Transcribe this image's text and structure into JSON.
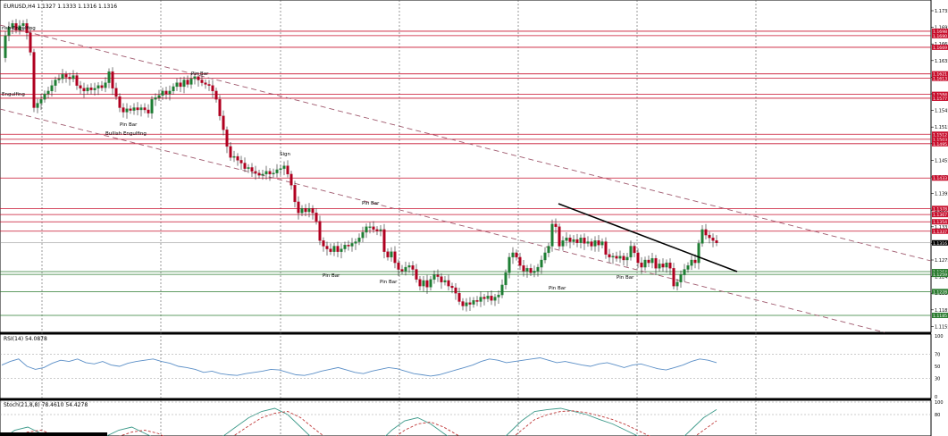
{
  "main_panel": {
    "title": "EURUSD,H4  1.1327 1.1333 1.1316 1.1316",
    "price_axis": [
      "1.1735",
      "1.1695",
      "1.1665",
      "1.1635",
      "1.1605",
      "1.1575",
      "1.1545",
      "1.1515",
      "1.1485",
      "1.1455",
      "1.1425",
      "1.1395",
      "1.1365",
      "1.1335",
      "1.1305",
      "1.1275",
      "1.1245",
      "1.1215",
      "1.1185",
      "1.1155"
    ],
    "level_tags": [
      {
        "label": "1.1698",
        "color": "#c8102e"
      },
      {
        "label": "1.1690",
        "color": "#c8102e"
      },
      {
        "label": "1.1669",
        "color": "#c8102e"
      },
      {
        "label": "1.1621",
        "color": "#c8102e"
      },
      {
        "label": "1.1613",
        "color": "#c8102e"
      },
      {
        "label": "1.1584",
        "color": "#c8102e"
      },
      {
        "label": "1.1577",
        "color": "#c8102e"
      },
      {
        "label": "1.1512",
        "color": "#c8102e"
      },
      {
        "label": "1.1503",
        "color": "#c8102e"
      },
      {
        "label": "1.1495",
        "color": "#c8102e"
      },
      {
        "label": "1.1433",
        "color": "#c8102e"
      },
      {
        "label": "1.1378",
        "color": "#c8102e"
      },
      {
        "label": "1.1367",
        "color": "#c8102e"
      },
      {
        "label": "1.1354",
        "color": "#c8102e"
      },
      {
        "label": "1.1337",
        "color": "#c8102e"
      },
      {
        "label": "1.1316",
        "color": "#000000"
      },
      {
        "label": "1.1264",
        "color": "#2e7d32"
      },
      {
        "label": "1.1259",
        "color": "#2e7d32"
      },
      {
        "label": "1.1228",
        "color": "#2e7d32"
      },
      {
        "label": "1.1185",
        "color": "#2e7d32"
      }
    ],
    "annotations": [
      {
        "text": "rish Engulfing"
      },
      {
        "text": "Pin Bar"
      },
      {
        "text": "Engulfing"
      },
      {
        "text": "Pin Bar"
      },
      {
        "text": "Bullish Engulfing"
      },
      {
        "text": "Sign"
      },
      {
        "text": "Pin Bar"
      },
      {
        "text": "Pin Bar"
      },
      {
        "text": "Pin Bar"
      },
      {
        "text": "Pin Bar"
      },
      {
        "text": "Pin Bar"
      }
    ]
  },
  "rsi_panel": {
    "title": "RSI(14) 54.0878",
    "axis": [
      "100",
      "70",
      "50",
      "30",
      "0"
    ]
  },
  "stoch_panel": {
    "title": "Stoch(21,8,8) 78.4610 54.4278",
    "axis": [
      "100",
      "80",
      "20"
    ]
  },
  "colors": {
    "bull": "#1e7e34",
    "bear": "#b00020",
    "resistance": "#c8102e",
    "support": "#2e7d32",
    "channel": "#a05a6e",
    "rsi_line": "#5b8fc7",
    "stoch_main": "#3d9a8a",
    "stoch_signal": "#c03a3a",
    "grid": "#555555"
  }
}
